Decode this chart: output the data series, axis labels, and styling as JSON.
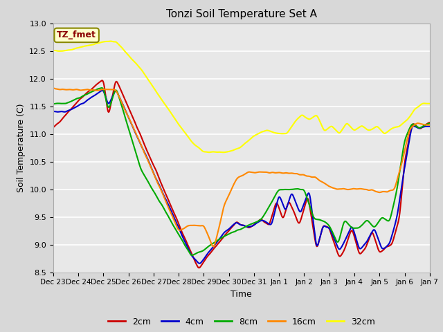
{
  "title": "Tonzi Soil Temperature Set A",
  "xlabel": "Time",
  "ylabel": "Soil Temperature (C)",
  "ylim": [
    8.5,
    13.0
  ],
  "annotation": "TZ_fmet",
  "fig_facecolor": "#d8d8d8",
  "plot_facecolor": "#e8e8e8",
  "grid_color": "#ffffff",
  "tick_labels": [
    "Dec 23",
    "Dec 24",
    "Dec 25",
    "Dec 26",
    "Dec 27",
    "Dec 28",
    "Dec 29",
    "Dec 30",
    "Dec 31",
    "Jan 1",
    "Jan 2",
    "Jan 3",
    "Jan 4",
    "Jan 5",
    "Jan 6",
    "Jan 7"
  ],
  "legend_entries": [
    "2cm",
    "4cm",
    "8cm",
    "16cm",
    "32cm"
  ],
  "line_colors": [
    "#cc0000",
    "#0000cc",
    "#00aa00",
    "#ff8800",
    "#ffff00"
  ],
  "line_widths": [
    1.5,
    1.5,
    1.5,
    1.5,
    1.5
  ]
}
